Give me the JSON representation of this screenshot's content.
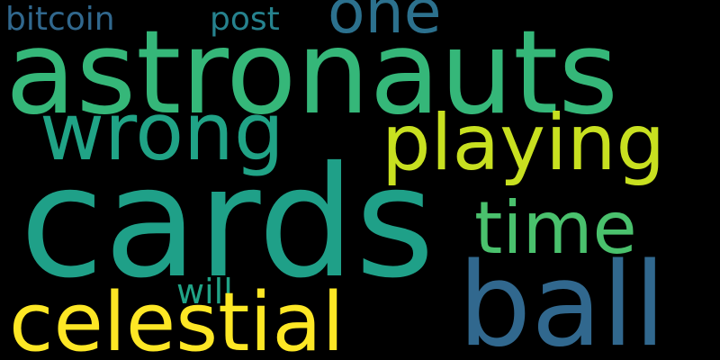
{
  "words": [
    {
      "text": "bitcoin",
      "color": "#31688e"
    },
    {
      "text": "post",
      "color": "#26828e"
    },
    {
      "text": "one",
      "color": "#2c718e"
    },
    {
      "text": "astronauts",
      "color": "#35b779"
    },
    {
      "text": "wrong",
      "color": "#20a386"
    },
    {
      "text": "playing",
      "color": "#c8e020"
    },
    {
      "text": "cards",
      "color": "#1fa088"
    },
    {
      "text": "time",
      "color": "#4ac16d"
    },
    {
      "text": "will",
      "color": "#20a386"
    },
    {
      "text": "ball",
      "color": "#31688e"
    },
    {
      "text": "celestial",
      "color": "#fde725"
    }
  ]
}
